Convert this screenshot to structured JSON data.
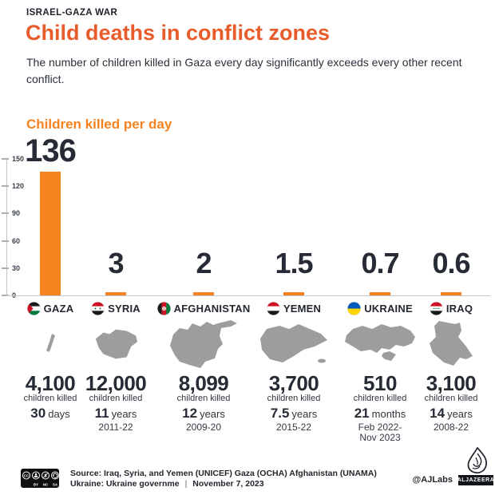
{
  "header": {
    "kicker": "ISRAEL-GAZA WAR",
    "title": "Child deaths in conflict zones",
    "subtitle": "The number of children killed in Gaza every day significantly exceeds every other recent conflict."
  },
  "chart_data": {
    "type": "bar",
    "title": "Children killed per day",
    "categories": [
      "Gaza",
      "Syria",
      "Afghanistan",
      "Yemen",
      "Ukraine",
      "Iraq"
    ],
    "values": [
      136,
      3,
      2,
      1.5,
      0.7,
      0.6
    ],
    "xlabel": "",
    "ylabel": "",
    "ylim": [
      0,
      150
    ],
    "yticks": [
      0,
      30,
      60,
      90,
      120,
      150
    ],
    "ytick_labels": [
      "0",
      "30",
      "60",
      "90",
      "120",
      "150"
    ],
    "grid": false,
    "legend": false,
    "bar_color": "#f5831f"
  },
  "countries": [
    {
      "name": "GAZA",
      "per_day": "136",
      "killed": "4,100",
      "killed_label": "children killed",
      "duration_value": "30",
      "duration_unit": "days",
      "period": ""
    },
    {
      "name": "SYRIA",
      "per_day": "3",
      "killed": "12,000",
      "killed_label": "children killed",
      "duration_value": "11",
      "duration_unit": "years",
      "period": "2011-22"
    },
    {
      "name": "AFGHANISTAN",
      "per_day": "2",
      "killed": "8,099",
      "killed_label": "children killed",
      "duration_value": "12",
      "duration_unit": "years",
      "period": "2009-20"
    },
    {
      "name": "YEMEN",
      "per_day": "1.5",
      "killed": "3,700",
      "killed_label": "children killed",
      "duration_value": "7.5",
      "duration_unit": "years",
      "period": "2015-22"
    },
    {
      "name": "UKRAINE",
      "per_day": "0.7",
      "killed": "510",
      "killed_label": "children killed",
      "duration_value": "21",
      "duration_unit": "months",
      "period": "Feb 2022-",
      "period2": "Nov 2023"
    },
    {
      "name": "IRAQ",
      "per_day": "0.6",
      "killed": "3,100",
      "killed_label": "children killed",
      "duration_value": "14",
      "duration_unit": "years",
      "period": "2008-22"
    }
  ],
  "footer": {
    "source_line1": "Source: Iraq, Syria, and Yemen (UNICEF) Gaza (OCHA) Afghanistan (UNAMA)",
    "source_line2": "Ukraine: Ukraine governme",
    "separator": "|",
    "date": "November 7, 2023",
    "credit": "@AJLabs",
    "brand": "ALJAZEERA",
    "cc": {
      "by": "BY",
      "nc": "NC",
      "sa": "SA",
      "cc": "CC"
    }
  },
  "colors": {
    "title_orange": "#e85c2b",
    "bar_orange": "#f5831f",
    "dark_text": "#262b36",
    "map_gray": "#9d9d9d"
  }
}
